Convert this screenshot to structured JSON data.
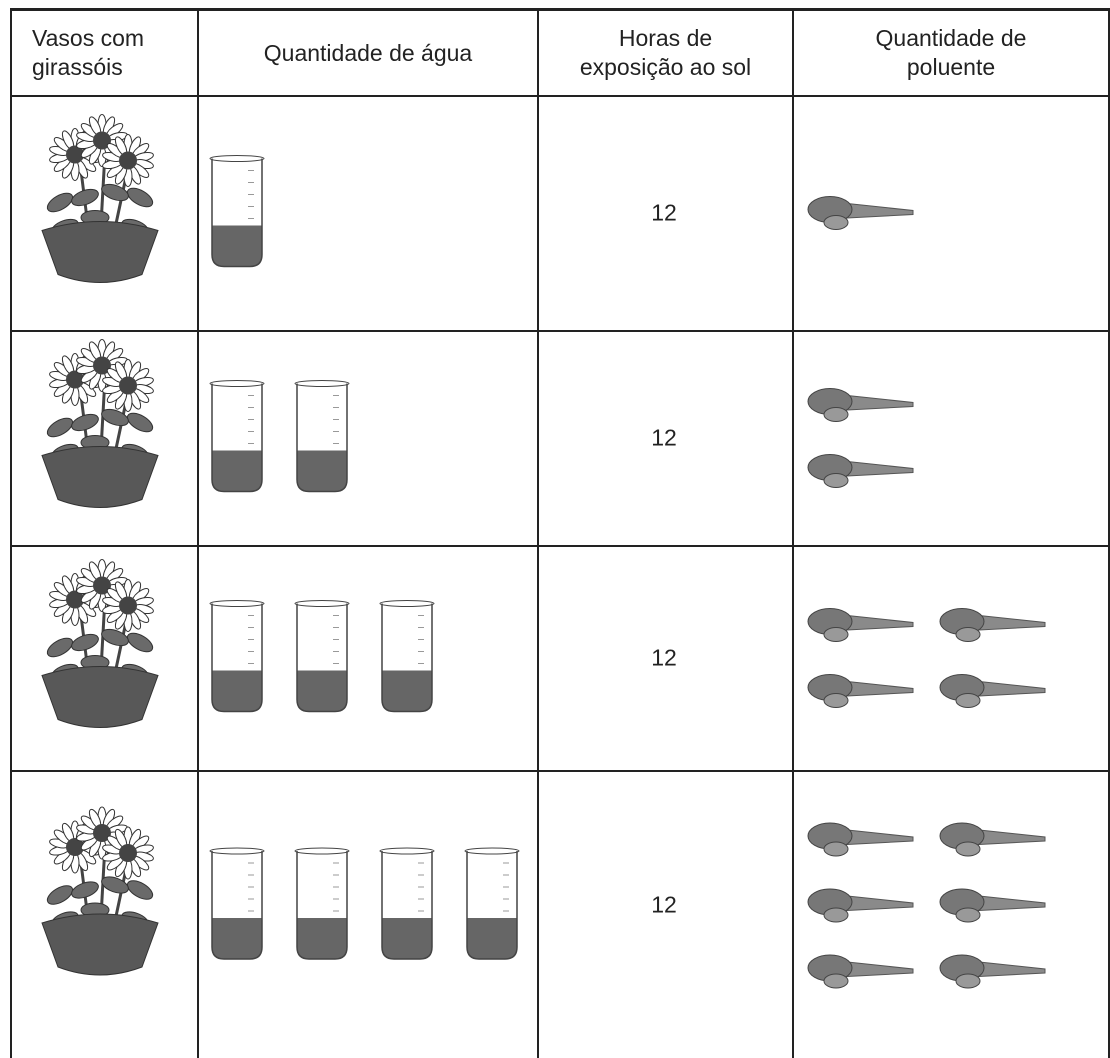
{
  "table": {
    "header": [
      "Vasos com girassóis",
      "Quantidade de água",
      "Horas de exposição ao sol",
      "Quantidade de poluente"
    ],
    "rows": [
      {
        "water": 1,
        "hours": 12,
        "pollutant": 1
      },
      {
        "water": 2,
        "hours": 12,
        "pollutant": 2
      },
      {
        "water": 3,
        "hours": 12,
        "pollutant": 4
      },
      {
        "water": 4,
        "hours": 12,
        "pollutant": 6
      }
    ]
  }
}
